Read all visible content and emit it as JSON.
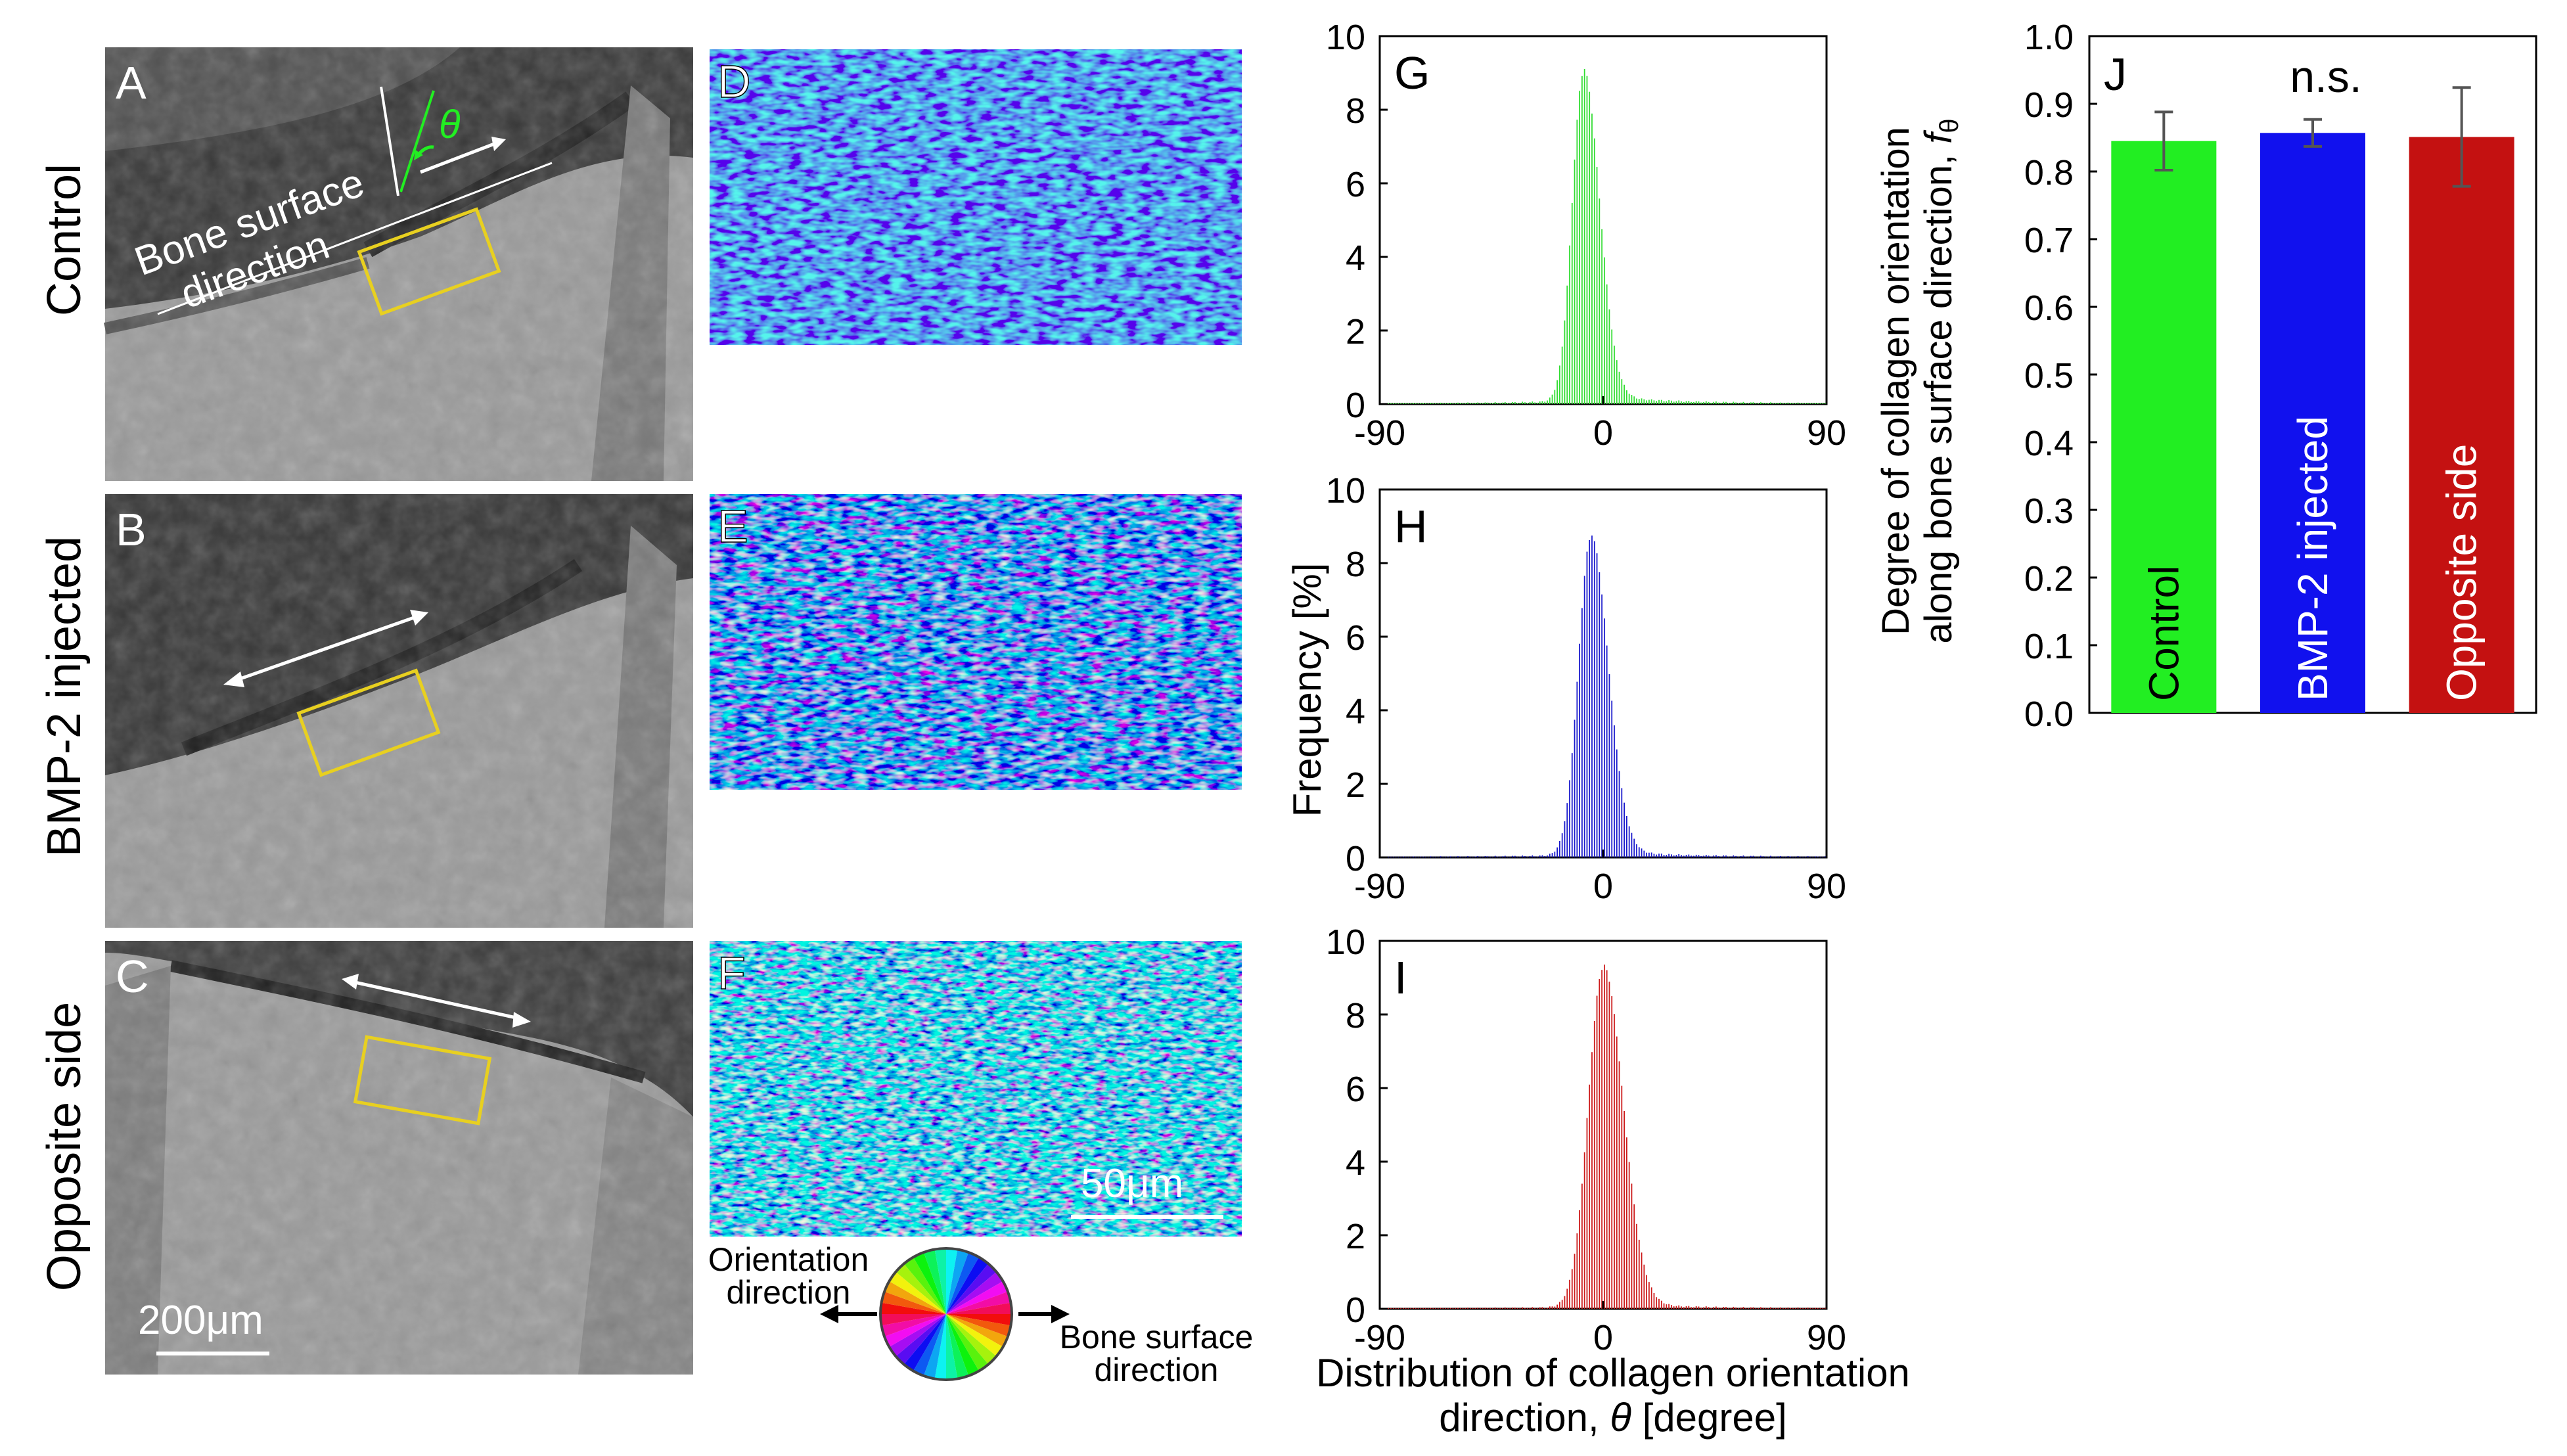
{
  "row_labels": [
    "Control",
    "BMP-2 injected",
    "Opposite side"
  ],
  "micro_panels": {
    "A": {
      "label": "A",
      "annotation": "Bone surface direction",
      "annotation_line1": "Bone surface",
      "annotation_line2": "direction",
      "theta": "θ"
    },
    "B": {
      "label": "B"
    },
    "C": {
      "label": "C",
      "scale_bar": "200μm"
    }
  },
  "map_panels": {
    "D": {
      "label": "D"
    },
    "E": {
      "label": "E"
    },
    "F": {
      "label": "F",
      "scale_bar": "50μm"
    }
  },
  "legend": {
    "orientation_line1": "Orientation",
    "orientation_line2": "direction",
    "bone_line1": "Bone surface",
    "bone_line2": "direction"
  },
  "histogram_axis": {
    "ylabel": "Frequency [%]",
    "xlabel_line1": "Distribution of collagen orientation",
    "xlabel_line2": "direction,",
    "xlabel_theta": "θ",
    "xlabel_unit": "[degree]",
    "xticks": [
      "-90",
      "0",
      "90"
    ],
    "yticks": [
      "0",
      "2",
      "4",
      "6",
      "8",
      "10"
    ]
  },
  "bar_axis": {
    "ylabel_line1": "Degree of collagen orientation",
    "ylabel_line2": "along bone surface direction,",
    "ylabel_symbol": "f",
    "ylabel_sub": "θ",
    "yticks": [
      "0.0",
      "0.1",
      "0.2",
      "0.3",
      "0.4",
      "0.5",
      "0.6",
      "0.7",
      "0.8",
      "0.9",
      "1.0"
    ],
    "annotation": "n.s."
  },
  "colors": {
    "control": "#22ee22",
    "bmp2": "#1111ee",
    "opposite": "#c41111",
    "hist_control": "#33dd33",
    "hist_bmp2": "#1a1acc",
    "hist_opposite": "#cc1a1a",
    "roi_box": "#e8d020",
    "arrow": "#ffffff"
  },
  "chart_data": [
    {
      "panel": "G",
      "type": "bar",
      "title": "G",
      "group": "Control",
      "xlabel": "Distribution of collagen orientation direction, θ [degree]",
      "ylabel": "Frequency [%]",
      "xlim": [
        -90,
        90
      ],
      "ylim": [
        0,
        10
      ],
      "peak_center": -8,
      "peak_value": 8.9,
      "sigma_left": 4.5,
      "sigma_right": 6.5,
      "tail_level": 0.15
    },
    {
      "panel": "H",
      "type": "bar",
      "title": "H",
      "group": "BMP-2 injected",
      "xlabel": "Distribution of collagen orientation direction, θ [degree]",
      "ylabel": "Frequency [%]",
      "xlim": [
        -90,
        90
      ],
      "ylim": [
        0,
        10
      ],
      "peak_center": -5,
      "peak_value": 8.6,
      "sigma_left": 5.0,
      "sigma_right": 7.0,
      "tail_level": 0.12
    },
    {
      "panel": "I",
      "type": "bar",
      "title": "I",
      "group": "Opposite side",
      "xlabel": "Distribution of collagen orientation direction, θ [degree]",
      "ylabel": "Frequency [%]",
      "xlim": [
        -90,
        90
      ],
      "ylim": [
        0,
        10
      ],
      "peak_center": 0,
      "peak_value": 9.2,
      "sigma_left": 6.0,
      "sigma_right": 8.0,
      "tail_level": 0.1
    },
    {
      "panel": "J",
      "type": "bar",
      "title": "J",
      "categories": [
        "Control",
        "BMP-2 injected",
        "Opposite side"
      ],
      "values": [
        0.845,
        0.857,
        0.851
      ],
      "errors": [
        0.043,
        0.02,
        0.073
      ],
      "ylabel": "Degree of collagen orientation along bone surface direction, fθ",
      "ylim": [
        0.0,
        1.0
      ],
      "annotation": "n.s."
    }
  ]
}
